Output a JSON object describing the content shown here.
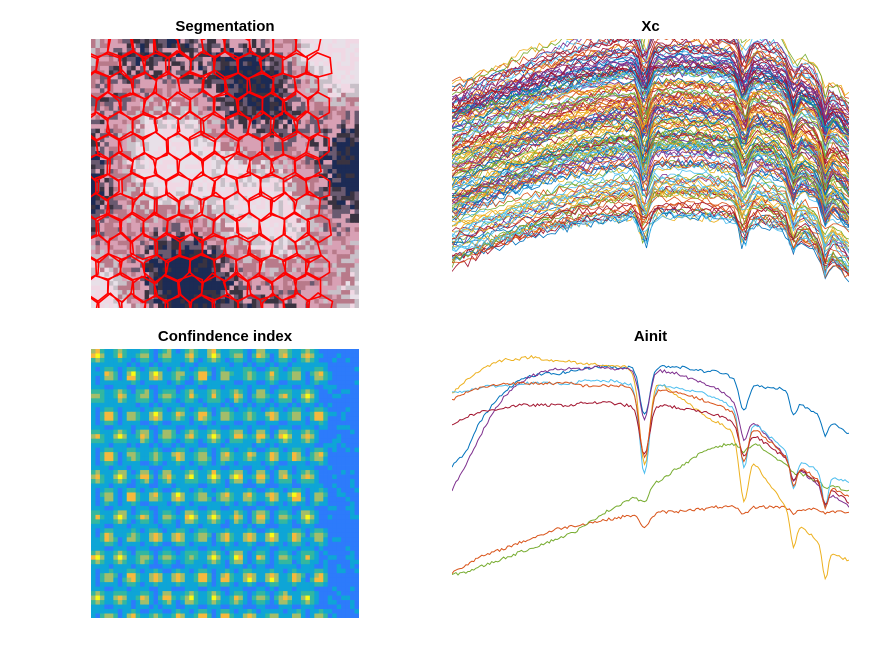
{
  "chart_data": [
    {
      "type": "heatmap",
      "title": "Segmentation",
      "description_colors": {
        "overlay": "#ff0000",
        "tones": [
          "#1c2b55",
          "#3a3340",
          "#d8a0b4",
          "#f0d8e4",
          "#c8c0c8",
          "#b87a8a",
          "#e8e0e8",
          "#6a5a70"
        ]
      },
      "grid_cells": [
        60,
        60
      ],
      "overlay": "superpixel boundaries (hexagonal)"
    },
    {
      "type": "line",
      "title": "Xc",
      "x_range": [
        0,
        200
      ],
      "y_range": [
        0,
        1
      ],
      "series_count": 160,
      "absorption_dips_x": [
        97,
        147,
        172,
        188
      ]
    },
    {
      "type": "heatmap",
      "title": "Confindence index",
      "colormap": "parula",
      "colors": [
        "#3e26a8",
        "#2d7bfb",
        "#0ea5d6",
        "#33b7a0",
        "#a3bd6a",
        "#f6b93d",
        "#f9fb15"
      ],
      "grid_cells": [
        60,
        60
      ],
      "pattern": "hexagonal superpixel centers with high confidence"
    },
    {
      "type": "line",
      "title": "Ainit",
      "x_range": [
        0,
        200
      ],
      "y_range": [
        0,
        1
      ],
      "series": [
        {
          "color": "#0072bd",
          "values": [
            0.55,
            0.6,
            0.72,
            0.8,
            0.86,
            0.9,
            0.92,
            0.93,
            0.93,
            0.94,
            0.95,
            0.96,
            0.96,
            0.95,
            0.97,
            0.96,
            0.96,
            0.96,
            0.95,
            0.94,
            0.94,
            0.92,
            0.9,
            0.88,
            0.87,
            0.87,
            0.82,
            0.78,
            0.75,
            0.72,
            0.68
          ]
        },
        {
          "color": "#d95319",
          "values": [
            0.11,
            0.14,
            0.17,
            0.19,
            0.21,
            0.23,
            0.25,
            0.27,
            0.29,
            0.3,
            0.31,
            0.32,
            0.33,
            0.34,
            0.35,
            0.35,
            0.36,
            0.36,
            0.37,
            0.37,
            0.38,
            0.38,
            0.38,
            0.38,
            0.38,
            0.38,
            0.37,
            0.37,
            0.37,
            0.36,
            0.36
          ]
        },
        {
          "color": "#edb120",
          "values": [
            0.85,
            0.9,
            0.94,
            0.97,
            0.99,
            0.99,
            1.0,
            0.99,
            0.98,
            0.98,
            0.97,
            0.97,
            0.96,
            0.96,
            0.94,
            0.91,
            0.88,
            0.84,
            0.8,
            0.76,
            0.73,
            0.7,
            0.63,
            0.55,
            0.47,
            0.4,
            0.33,
            0.27,
            0.22,
            0.18,
            0.16
          ]
        },
        {
          "color": "#7e2f8e",
          "values": [
            0.45,
            0.55,
            0.66,
            0.76,
            0.84,
            0.89,
            0.92,
            0.94,
            0.95,
            0.95,
            0.95,
            0.96,
            0.95,
            0.95,
            0.95,
            0.95,
            0.94,
            0.93,
            0.91,
            0.89,
            0.87,
            0.83,
            0.78,
            0.72,
            0.66,
            0.6,
            0.55,
            0.5,
            0.46,
            0.42,
            0.38
          ]
        },
        {
          "color": "#77ac30",
          "values": [
            0.1,
            0.11,
            0.13,
            0.15,
            0.17,
            0.19,
            0.21,
            0.23,
            0.25,
            0.27,
            0.3,
            0.34,
            0.37,
            0.4,
            0.43,
            0.47,
            0.5,
            0.54,
            0.57,
            0.61,
            0.63,
            0.64,
            0.64,
            0.64,
            0.6,
            0.56,
            0.53,
            0.5,
            0.48,
            0.46,
            0.45
          ]
        },
        {
          "color": "#4dbeee",
          "values": [
            0.85,
            0.86,
            0.87,
            0.88,
            0.88,
            0.89,
            0.89,
            0.89,
            0.89,
            0.89,
            0.9,
            0.9,
            0.9,
            0.89,
            0.89,
            0.89,
            0.88,
            0.87,
            0.86,
            0.85,
            0.83,
            0.8,
            0.77,
            0.72,
            0.67,
            0.62,
            0.58,
            0.55,
            0.52,
            0.5,
            0.48
          ]
        },
        {
          "color": "#a2142f",
          "values": [
            0.72,
            0.75,
            0.77,
            0.78,
            0.79,
            0.8,
            0.8,
            0.8,
            0.8,
            0.8,
            0.81,
            0.81,
            0.81,
            0.8,
            0.8,
            0.8,
            0.8,
            0.79,
            0.78,
            0.77,
            0.76,
            0.74,
            0.71,
            0.67,
            0.63,
            0.59,
            0.55,
            0.51,
            0.47,
            0.44,
            0.4
          ]
        },
        {
          "color": "#d95319",
          "values": [
            0.82,
            0.85,
            0.87,
            0.88,
            0.89,
            0.89,
            0.89,
            0.89,
            0.89,
            0.89,
            0.88,
            0.88,
            0.88,
            0.88,
            0.87,
            0.87,
            0.86,
            0.85,
            0.84,
            0.82,
            0.8,
            0.78,
            0.74,
            0.7,
            0.65,
            0.6,
            0.56,
            0.52,
            0.48,
            0.45,
            0.42
          ]
        }
      ],
      "dips": [
        {
          "x": 97,
          "w": 3.5,
          "d": 0.34
        },
        {
          "x": 147,
          "w": 3,
          "d": 0.2
        },
        {
          "x": 172,
          "w": 2.2,
          "d": 0.12
        },
        {
          "x": 188,
          "w": 2,
          "d": 0.12
        }
      ]
    }
  ],
  "titles": {
    "segmentation": "Segmentation",
    "xc": "Xc",
    "confidence": "Confindence index",
    "ainit": "Ainit"
  }
}
